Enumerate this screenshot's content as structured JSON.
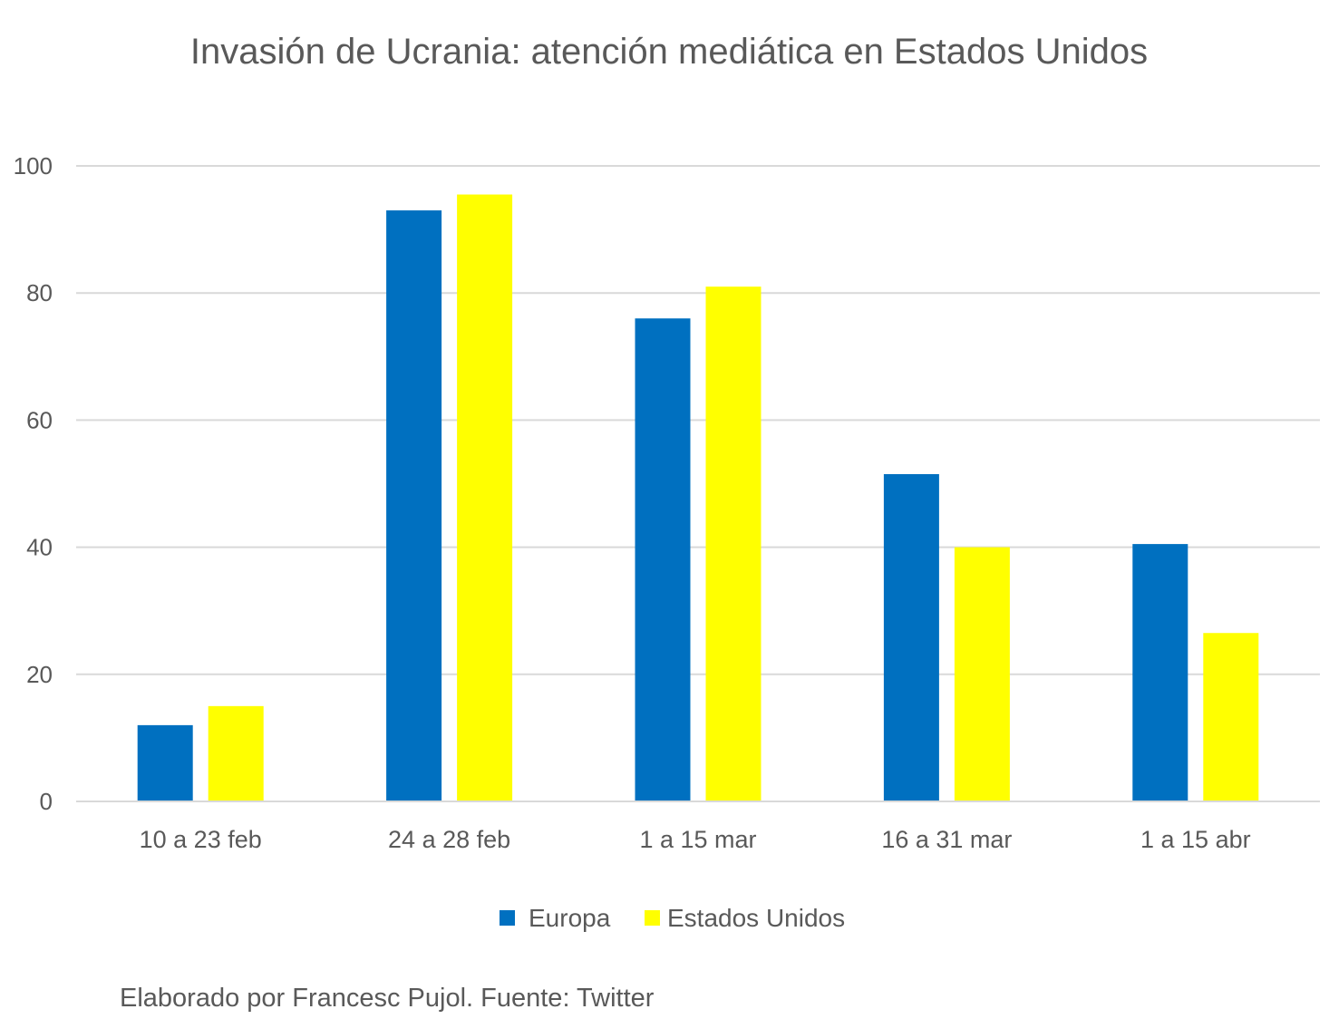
{
  "chart_data": {
    "type": "bar",
    "title": "Invasión de Ucrania: atención mediática en Estados Unidos",
    "categories": [
      "10 a 23 feb",
      "24 a 28 feb",
      "1 a 15 mar",
      "16 a 31 mar",
      "1 a 15 abr"
    ],
    "series": [
      {
        "name": "Europa",
        "color": "#0070C0",
        "values": [
          12,
          93,
          76,
          51.5,
          40.5
        ]
      },
      {
        "name": "Estados Unidos",
        "color": "#FFFF00",
        "values": [
          15,
          95.5,
          81,
          40,
          26.5
        ]
      }
    ],
    "ylim": [
      0,
      100
    ],
    "yticks": [
      "0",
      "20",
      "40",
      "60",
      "80",
      "100"
    ],
    "grid": true,
    "legend_position": "bottom-center",
    "source": "Elaborado por Francesc Pujol. Fuente: Twitter"
  }
}
